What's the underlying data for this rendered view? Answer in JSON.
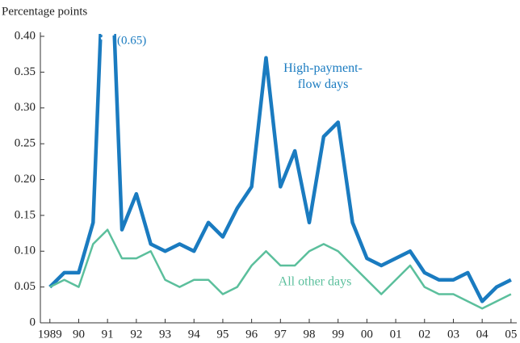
{
  "chart_data": {
    "type": "line",
    "y_label": "Percentage points",
    "annotation": "(0.65)",
    "x": [
      1989,
      1989.5,
      1990,
      1990.5,
      1991,
      1991.5,
      1992,
      1992.5,
      1993,
      1993.5,
      1994,
      1994.5,
      1995,
      1995.5,
      1996,
      1996.5,
      1997,
      1997.5,
      1998,
      1998.5,
      1999,
      1999.5,
      2000,
      2000.5,
      2001,
      2001.5,
      2002,
      2002.5,
      2003,
      2003.5,
      2004,
      2004.5,
      2005
    ],
    "series": [
      {
        "name": "High-payment-flow days",
        "color": "#1a7bc0",
        "values": [
          0.05,
          0.07,
          0.07,
          0.14,
          0.65,
          0.13,
          0.18,
          0.11,
          0.1,
          0.11,
          0.1,
          0.14,
          0.12,
          0.16,
          0.19,
          0.37,
          0.19,
          0.24,
          0.14,
          0.26,
          0.28,
          0.14,
          0.09,
          0.08,
          0.09,
          0.1,
          0.07,
          0.06,
          0.06,
          0.07,
          0.03,
          0.05,
          0.06
        ]
      },
      {
        "name": "All other days",
        "color": "#5bbf9c",
        "values": [
          0.05,
          0.06,
          0.05,
          0.11,
          0.13,
          0.09,
          0.09,
          0.1,
          0.06,
          0.05,
          0.06,
          0.06,
          0.04,
          0.05,
          0.08,
          0.1,
          0.08,
          0.08,
          0.1,
          0.11,
          0.1,
          0.08,
          0.06,
          0.04,
          0.06,
          0.08,
          0.05,
          0.04,
          0.04,
          0.03,
          0.02,
          0.03,
          0.04
        ]
      }
    ],
    "xlim": [
      1988.67,
      2005.2
    ],
    "xticks": [
      1989,
      {
        "value": 1990,
        "label": "90"
      },
      {
        "value": 1991,
        "label": "91"
      },
      {
        "value": 1992,
        "label": "92"
      },
      {
        "value": 1993,
        "label": "93"
      },
      {
        "value": 1994,
        "label": "94"
      },
      {
        "value": 1995,
        "label": "95"
      },
      {
        "value": 1996,
        "label": "96"
      },
      {
        "value": 1997,
        "label": "97"
      },
      {
        "value": 1998,
        "label": "98"
      },
      {
        "value": 1999,
        "label": "99"
      },
      {
        "value": 2000,
        "label": "00"
      },
      {
        "value": 2001,
        "label": "01"
      },
      {
        "value": 2002,
        "label": "02"
      },
      {
        "value": 2003,
        "label": "03"
      },
      {
        "value": 2004,
        "label": "04"
      },
      {
        "value": 2005,
        "label": "05"
      }
    ],
    "ylim": [
      0,
      0.4
    ],
    "yticks": [
      0,
      0.05,
      {
        "value": 0.1,
        "label": "0.10"
      },
      0.15,
      {
        "value": 0.2,
        "label": "0.20"
      },
      0.25,
      {
        "value": 0.3,
        "label": "0.30"
      },
      0.35,
      {
        "value": 0.4,
        "label": "0.40"
      }
    ],
    "grid": false
  }
}
